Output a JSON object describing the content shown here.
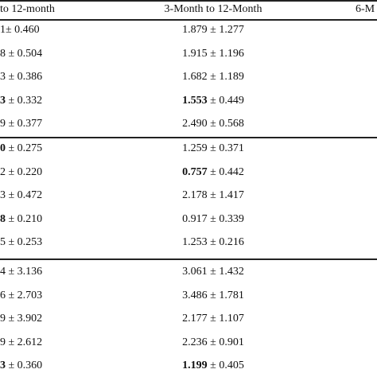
{
  "table": {
    "header": [
      "to 12-month",
      "3-Month to 12-Month",
      "6-M"
    ],
    "groups": [
      [
        [
          "1± 0.460",
          "1.879 ± 1.277"
        ],
        [
          "8 ± 0.504",
          "1.915 ± 1.196"
        ],
        [
          "3 ± 0.386",
          "1.682 ± 1.189"
        ],
        [
          {
            "bold": "3",
            "text": " ± 0.332"
          },
          {
            "bold": "1.553",
            "text": " ± 0.449"
          }
        ],
        [
          "9 ± 0.377",
          "2.490 ± 0.568"
        ]
      ],
      [
        [
          {
            "bold": "0",
            "text": " ± 0.275"
          },
          "1.259 ± 0.371"
        ],
        [
          "2 ± 0.220",
          {
            "bold": "0.757",
            "text": " ± 0.442"
          }
        ],
        [
          "3 ± 0.472",
          "2.178 ± 1.417"
        ],
        [
          {
            "bold": "8",
            "text": " ± 0.210"
          },
          "0.917 ± 0.339"
        ],
        [
          "5 ± 0.253",
          "1.253 ± 0.216"
        ]
      ],
      [
        [
          "4 ± 3.136",
          "3.061 ± 1.432"
        ],
        [
          "6 ± 2.703",
          "3.486 ± 1.781"
        ],
        [
          "9 ± 3.902",
          "2.177 ± 1.107"
        ],
        [
          "9 ± 2.612",
          "2.236 ± 0.901"
        ],
        [
          {
            "bold": "3",
            "text": " ± 0.360"
          },
          {
            "bold": "1.199",
            "text": " ± 0.405"
          }
        ]
      ]
    ]
  }
}
